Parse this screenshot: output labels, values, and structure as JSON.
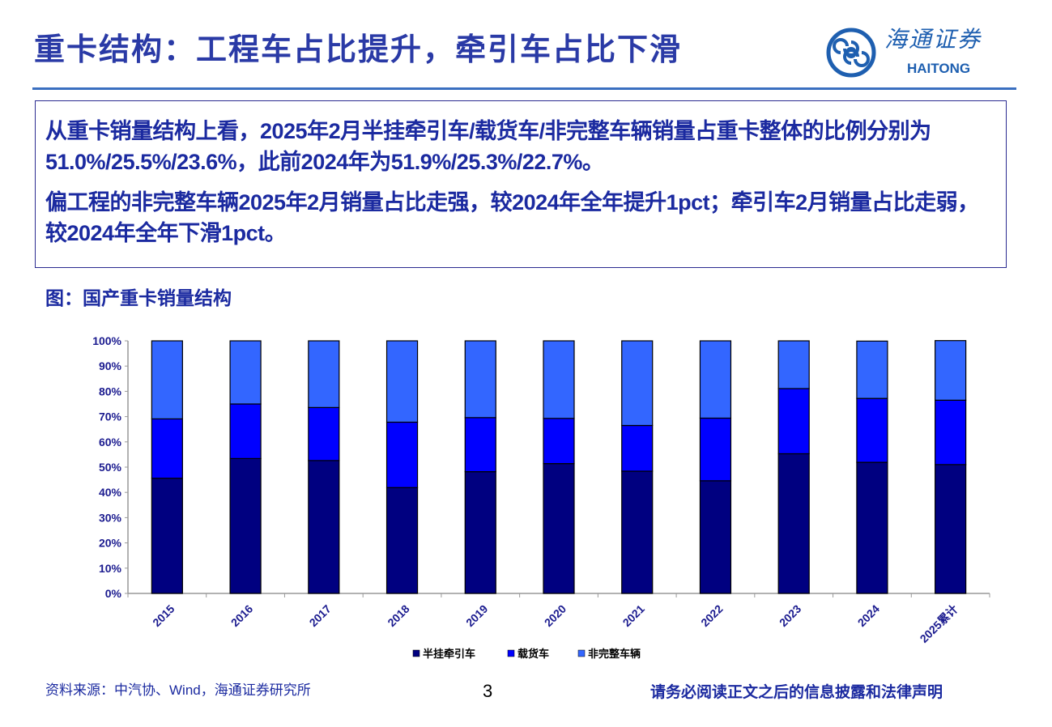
{
  "header": {
    "title": "重卡结构：工程车占比提升，牵引车占比下滑",
    "logo_cn": "海通证券",
    "logo_en": "HAITONG"
  },
  "summary": {
    "p1": "从重卡销量结构上看，2025年2月半挂牵引车/载货车/非完整车辆销量占重卡整体的比例分别为51.0%/25.5%/23.6%，此前2024年为51.9%/25.3%/22.7%。",
    "p2": "偏工程的非完整车辆2025年2月销量占比走强，较2024年全年提升1pct；牵引车2月销量占比走弱，较2024年全年下滑1pct。"
  },
  "figure_title": "图：国产重卡销量结构",
  "chart_data": {
    "type": "bar",
    "stacked": true,
    "categories": [
      "2015",
      "2016",
      "2017",
      "2018",
      "2019",
      "2020",
      "2021",
      "2022",
      "2023",
      "2024",
      "2025累计"
    ],
    "series": [
      {
        "name": "半挂牵引车",
        "color": "#000080",
        "values": [
          45.6,
          53.4,
          52.6,
          41.9,
          48.2,
          51.4,
          48.4,
          44.6,
          55.3,
          51.9,
          51.0
        ]
      },
      {
        "name": "载货车",
        "color": "#0000ff",
        "values": [
          23.5,
          21.6,
          21.0,
          25.9,
          21.4,
          17.9,
          18.1,
          24.8,
          25.8,
          25.3,
          25.5
        ]
      },
      {
        "name": "非完整车辆",
        "color": "#3366ff",
        "values": [
          30.9,
          25.0,
          26.4,
          32.2,
          30.4,
          30.7,
          33.5,
          30.6,
          18.9,
          22.7,
          23.6
        ]
      }
    ],
    "yticks": [
      "0%",
      "10%",
      "20%",
      "30%",
      "40%",
      "50%",
      "60%",
      "70%",
      "80%",
      "90%",
      "100%"
    ],
    "ylim": [
      0,
      100
    ],
    "legend": "bottom",
    "title": "",
    "xlabel": "",
    "ylabel": ""
  },
  "footer": {
    "source": "资料来源：中汽协、Wind，海通证券研究所",
    "page": "3",
    "disclaimer": "请务必阅读正文之后的信息披露和法律声明"
  }
}
